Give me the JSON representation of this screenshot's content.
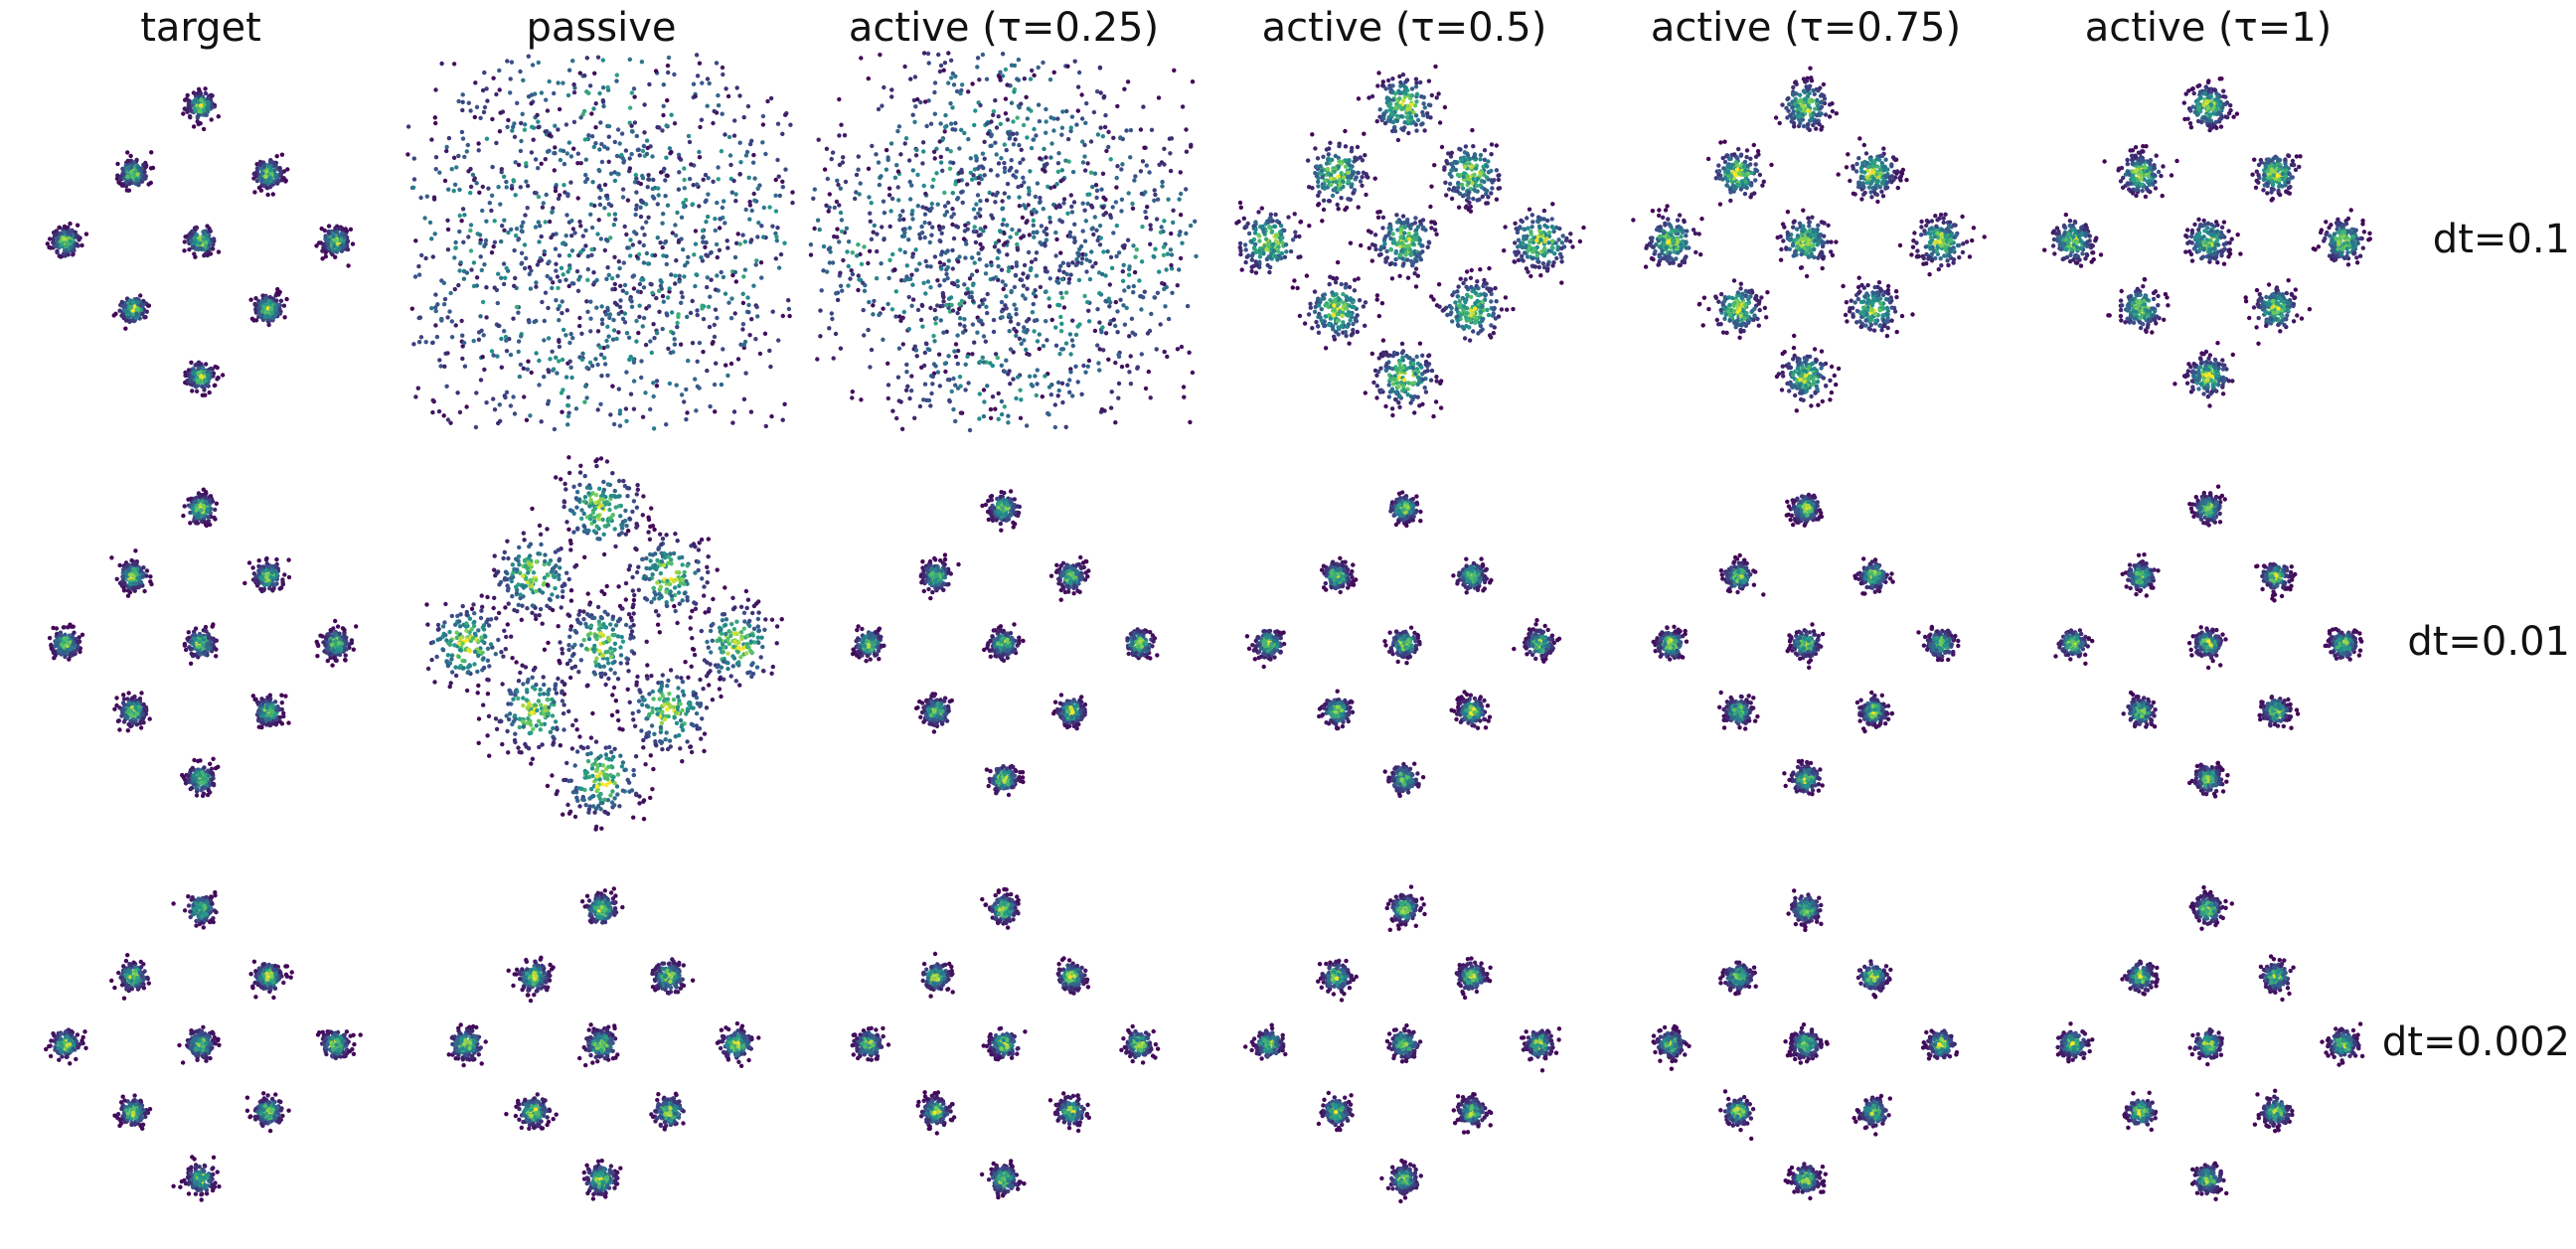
{
  "columns": [
    "target",
    "passive",
    "active (τ=0.25)",
    "active (τ=0.5)",
    "active (τ=0.75)",
    "active (τ=1)"
  ],
  "rows": [
    "dt=0.1",
    "dt=0.01",
    "dt=0.002"
  ],
  "centers": [
    [
      0,
      4
    ],
    [
      -2,
      2
    ],
    [
      2,
      2
    ],
    [
      -4,
      0
    ],
    [
      0,
      0
    ],
    [
      4,
      0
    ],
    [
      -2,
      -2
    ],
    [
      2,
      -2
    ],
    [
      0,
      -4
    ]
  ],
  "spread": [
    [
      0.2,
      2.5,
      1.8,
      0.45,
      0.35,
      0.3
    ],
    [
      0.2,
      0.6,
      0.2,
      0.2,
      0.2,
      0.2
    ],
    [
      0.2,
      0.22,
      0.2,
      0.2,
      0.2,
      0.2
    ]
  ]
}
